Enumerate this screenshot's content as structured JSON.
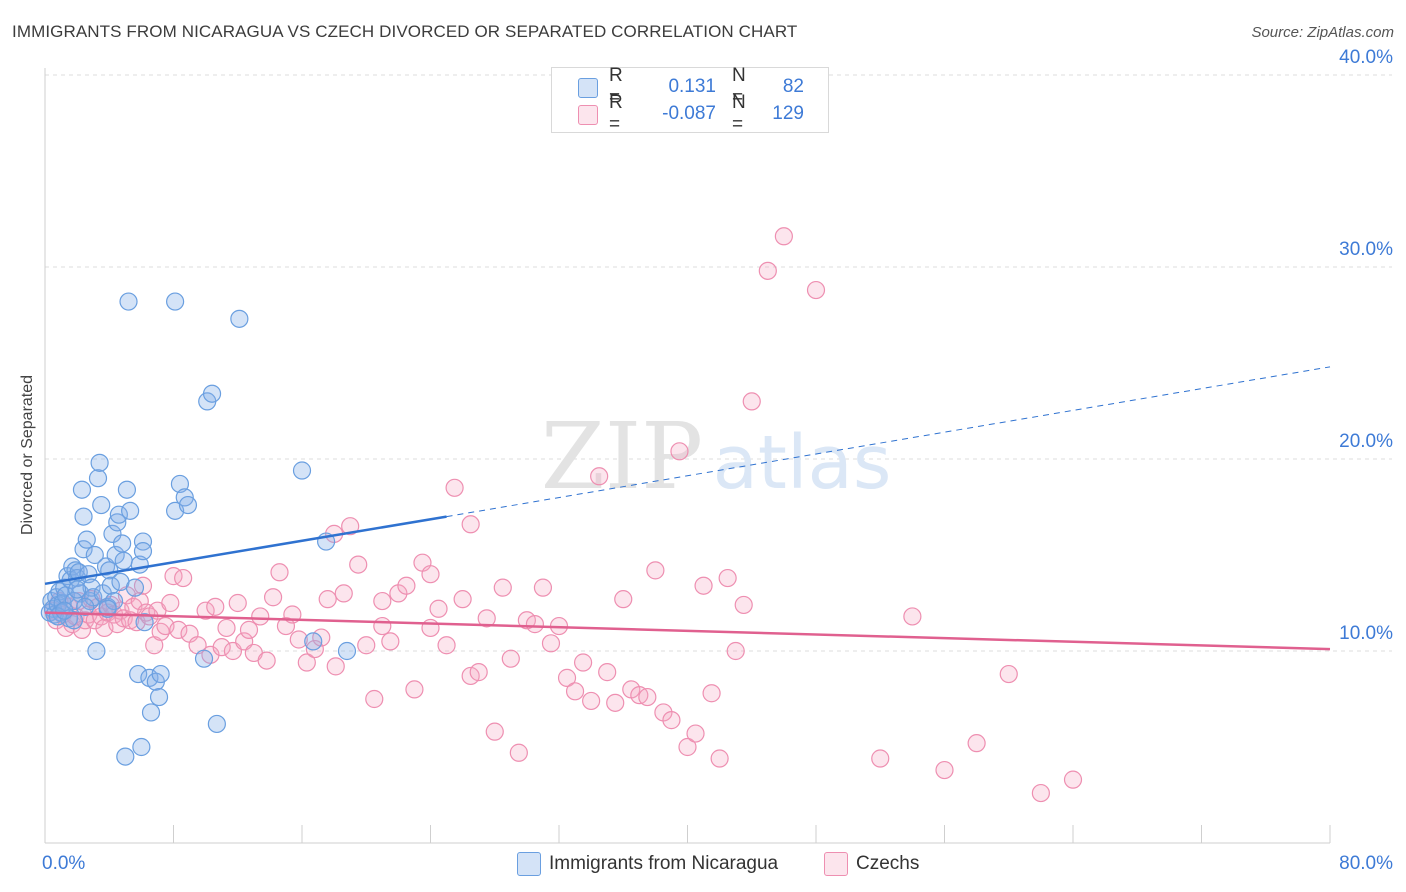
{
  "header": {
    "title": "IMMIGRANTS FROM NICARAGUA VS CZECH DIVORCED OR SEPARATED CORRELATION CHART",
    "source": "Source: ZipAtlas.com"
  },
  "watermark": {
    "part1": "ZIP",
    "part2": "atlas"
  },
  "stats": {
    "rows": [
      {
        "r_label": "R =",
        "r_value": "0.131",
        "n_label": "N =",
        "n_value": "82",
        "color": "#6fa3e0"
      },
      {
        "r_label": "R =",
        "r_value": "-0.087",
        "n_label": "N =",
        "n_value": "129",
        "color": "#f09ab6"
      }
    ]
  },
  "legend": {
    "items": [
      {
        "label": "Immigrants from Nicaragua",
        "color": "#6fa3e0"
      },
      {
        "label": "Czechs",
        "color": "#f09ab6"
      }
    ]
  },
  "colors": {
    "blue_fill": "rgba(132,176,232,0.35)",
    "blue_stroke": "#6a9fe0",
    "blue_line": "#2f72d0",
    "pink_fill": "rgba(244,168,196,0.30)",
    "pink_stroke": "#ee8fb1",
    "pink_line": "#e0608f",
    "axis_label": "#3d7ad6",
    "grid": "#dcdcdc"
  },
  "chart_data": {
    "type": "scatter",
    "title": "IMMIGRANTS FROM NICARAGUA VS CZECH DIVORCED OR SEPARATED CORRELATION CHART",
    "xlabel": "",
    "ylabel": "Divorced or Separated",
    "xlim": [
      0,
      80
    ],
    "ylim": [
      0,
      40
    ],
    "x_tick_labels": [
      "0.0%",
      "80.0%"
    ],
    "y_ticks": [
      10,
      20,
      30,
      40
    ],
    "y_tick_labels": [
      "10.0%",
      "20.0%",
      "30.0%",
      "40.0%"
    ],
    "grid": true,
    "series": [
      {
        "name": "Immigrants from Nicaragua",
        "trend": {
          "x0": 0,
          "y0": 13.5,
          "x1": 25,
          "y1": 17.0,
          "dashed_to_x": 80,
          "dashed_to_y": 24.8
        },
        "points": [
          [
            0.3,
            12.0
          ],
          [
            0.4,
            12.6
          ],
          [
            0.5,
            12.2
          ],
          [
            0.6,
            11.9
          ],
          [
            0.7,
            12.8
          ],
          [
            0.8,
            12.4
          ],
          [
            0.9,
            13.1
          ],
          [
            1.0,
            12.0
          ],
          [
            1.1,
            12.5
          ],
          [
            1.2,
            13.3
          ],
          [
            1.3,
            12.9
          ],
          [
            1.4,
            13.9
          ],
          [
            1.5,
            11.7
          ],
          [
            1.6,
            13.7
          ],
          [
            1.7,
            14.4
          ],
          [
            1.8,
            11.6
          ],
          [
            1.9,
            14.2
          ],
          [
            2.0,
            13.8
          ],
          [
            2.1,
            14.1
          ],
          [
            2.2,
            13.0
          ],
          [
            2.3,
            18.4
          ],
          [
            2.4,
            15.3
          ],
          [
            2.4,
            17.0
          ],
          [
            2.6,
            15.8
          ],
          [
            2.7,
            14.0
          ],
          [
            2.8,
            12.6
          ],
          [
            2.9,
            13.3
          ],
          [
            3.0,
            12.8
          ],
          [
            3.1,
            15.0
          ],
          [
            3.2,
            10.0
          ],
          [
            3.3,
            19.0
          ],
          [
            3.4,
            19.8
          ],
          [
            3.5,
            17.6
          ],
          [
            3.6,
            13.0
          ],
          [
            3.8,
            14.4
          ],
          [
            3.9,
            12.3
          ],
          [
            4.0,
            14.2
          ],
          [
            4.1,
            13.4
          ],
          [
            4.2,
            16.1
          ],
          [
            4.3,
            12.6
          ],
          [
            4.4,
            15.0
          ],
          [
            4.5,
            16.7
          ],
          [
            4.6,
            17.1
          ],
          [
            4.7,
            13.6
          ],
          [
            4.8,
            15.6
          ],
          [
            4.9,
            14.7
          ],
          [
            5.0,
            4.5
          ],
          [
            5.1,
            18.4
          ],
          [
            5.2,
            28.2
          ],
          [
            5.3,
            17.3
          ],
          [
            5.6,
            13.3
          ],
          [
            5.8,
            8.8
          ],
          [
            5.9,
            14.5
          ],
          [
            6.0,
            5.0
          ],
          [
            6.1,
            15.7
          ],
          [
            6.1,
            15.2
          ],
          [
            6.2,
            11.5
          ],
          [
            6.5,
            8.6
          ],
          [
            6.6,
            6.8
          ],
          [
            6.9,
            8.4
          ],
          [
            7.1,
            7.6
          ],
          [
            7.2,
            8.8
          ],
          [
            8.1,
            28.2
          ],
          [
            8.1,
            17.3
          ],
          [
            8.4,
            18.7
          ],
          [
            8.7,
            18.0
          ],
          [
            8.9,
            17.6
          ],
          [
            9.9,
            9.6
          ],
          [
            10.1,
            23.0
          ],
          [
            10.4,
            23.4
          ],
          [
            10.7,
            6.2
          ],
          [
            12.1,
            27.3
          ],
          [
            16.0,
            19.4
          ],
          [
            16.7,
            10.5
          ],
          [
            17.5,
            15.7
          ],
          [
            18.8,
            10.0
          ],
          [
            3.9,
            12.2
          ],
          [
            1.8,
            12.6
          ],
          [
            2.0,
            13.2
          ],
          [
            0.8,
            11.8
          ],
          [
            2.5,
            12.3
          ],
          [
            1.2,
            12.1
          ]
        ]
      },
      {
        "name": "Czechs",
        "trend": {
          "x0": 0,
          "y0": 12.0,
          "x1": 80,
          "y1": 10.1
        },
        "points": [
          [
            0.5,
            12.1
          ],
          [
            0.7,
            11.6
          ],
          [
            0.9,
            12.6
          ],
          [
            1.1,
            11.9
          ],
          [
            1.3,
            11.2
          ],
          [
            1.5,
            12.3
          ],
          [
            1.7,
            11.4
          ],
          [
            1.9,
            11.8
          ],
          [
            2.1,
            12.6
          ],
          [
            2.3,
            11.1
          ],
          [
            2.5,
            11.6
          ],
          [
            2.7,
            11.9
          ],
          [
            2.9,
            12.7
          ],
          [
            3.1,
            11.6
          ],
          [
            3.3,
            12.3
          ],
          [
            3.5,
            11.8
          ],
          [
            3.7,
            11.2
          ],
          [
            3.9,
            12.0
          ],
          [
            4.1,
            12.4
          ],
          [
            4.3,
            11.9
          ],
          [
            4.5,
            11.4
          ],
          [
            4.7,
            12.1
          ],
          [
            4.9,
            11.7
          ],
          [
            5.1,
            12.9
          ],
          [
            5.3,
            11.6
          ],
          [
            5.5,
            12.3
          ],
          [
            5.7,
            11.5
          ],
          [
            5.9,
            12.6
          ],
          [
            6.1,
            13.4
          ],
          [
            6.3,
            12.0
          ],
          [
            6.5,
            11.8
          ],
          [
            6.8,
            10.3
          ],
          [
            7.0,
            12.1
          ],
          [
            7.2,
            11.0
          ],
          [
            7.5,
            11.3
          ],
          [
            7.8,
            12.5
          ],
          [
            8.0,
            13.9
          ],
          [
            8.3,
            11.1
          ],
          [
            8.6,
            13.8
          ],
          [
            9.0,
            10.9
          ],
          [
            9.5,
            10.3
          ],
          [
            10.0,
            12.1
          ],
          [
            10.3,
            9.8
          ],
          [
            10.6,
            12.3
          ],
          [
            11.0,
            10.2
          ],
          [
            11.3,
            11.2
          ],
          [
            11.7,
            10.0
          ],
          [
            12.0,
            12.5
          ],
          [
            12.4,
            10.5
          ],
          [
            12.7,
            11.1
          ],
          [
            13.0,
            9.9
          ],
          [
            13.4,
            11.8
          ],
          [
            13.8,
            9.5
          ],
          [
            14.2,
            12.8
          ],
          [
            14.6,
            14.1
          ],
          [
            15.0,
            11.3
          ],
          [
            15.4,
            11.9
          ],
          [
            15.8,
            10.6
          ],
          [
            16.3,
            9.4
          ],
          [
            16.8,
            10.1
          ],
          [
            17.2,
            10.7
          ],
          [
            17.6,
            12.7
          ],
          [
            18.1,
            9.2
          ],
          [
            18.6,
            13.0
          ],
          [
            19.0,
            16.5
          ],
          [
            19.5,
            14.5
          ],
          [
            20.0,
            10.3
          ],
          [
            20.5,
            7.5
          ],
          [
            21.0,
            11.3
          ],
          [
            21.5,
            10.5
          ],
          [
            22.0,
            13.0
          ],
          [
            22.5,
            13.4
          ],
          [
            23.0,
            8.0
          ],
          [
            23.5,
            14.6
          ],
          [
            24.0,
            11.2
          ],
          [
            24.5,
            12.2
          ],
          [
            25.0,
            10.3
          ],
          [
            25.5,
            18.5
          ],
          [
            26.0,
            12.7
          ],
          [
            26.5,
            8.7
          ],
          [
            27.0,
            8.9
          ],
          [
            27.5,
            11.7
          ],
          [
            28.0,
            5.8
          ],
          [
            28.5,
            13.3
          ],
          [
            29.0,
            9.6
          ],
          [
            29.5,
            4.7
          ],
          [
            30.0,
            11.6
          ],
          [
            30.5,
            11.4
          ],
          [
            31.0,
            13.3
          ],
          [
            31.5,
            10.4
          ],
          [
            32.0,
            11.3
          ],
          [
            32.5,
            8.6
          ],
          [
            33.0,
            7.9
          ],
          [
            33.5,
            9.4
          ],
          [
            34.0,
            7.4
          ],
          [
            34.5,
            19.1
          ],
          [
            35.0,
            8.9
          ],
          [
            35.5,
            7.3
          ],
          [
            36.0,
            12.7
          ],
          [
            36.5,
            8.0
          ],
          [
            37.0,
            7.7
          ],
          [
            37.5,
            7.6
          ],
          [
            38.0,
            14.2
          ],
          [
            38.5,
            6.8
          ],
          [
            39.0,
            6.4
          ],
          [
            39.5,
            20.4
          ],
          [
            40.0,
            5.0
          ],
          [
            40.5,
            5.7
          ],
          [
            41.0,
            13.4
          ],
          [
            41.5,
            7.8
          ],
          [
            42.0,
            4.4
          ],
          [
            42.5,
            13.8
          ],
          [
            43.0,
            10.0
          ],
          [
            43.5,
            12.4
          ],
          [
            44.0,
            23.0
          ],
          [
            45.0,
            29.8
          ],
          [
            46.0,
            31.6
          ],
          [
            48.0,
            28.8
          ],
          [
            52.0,
            4.4
          ],
          [
            54.0,
            11.8
          ],
          [
            56.0,
            3.8
          ],
          [
            58.0,
            5.2
          ],
          [
            60.0,
            8.8
          ],
          [
            62.0,
            2.6
          ],
          [
            64.0,
            3.3
          ],
          [
            18.0,
            16.1
          ],
          [
            21.0,
            12.6
          ],
          [
            24.0,
            14.0
          ],
          [
            26.5,
            16.6
          ]
        ]
      }
    ]
  }
}
